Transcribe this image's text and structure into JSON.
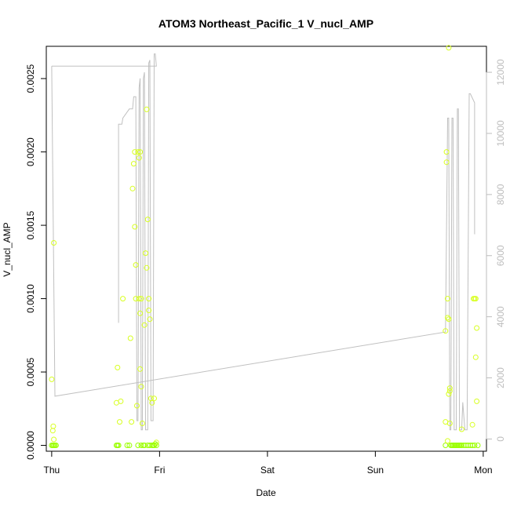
{
  "chart_data": {
    "type": "scatter",
    "title": "ATOM3 Northeast_Pacific_1 V_nucl_AMP",
    "xlabel": "Date",
    "ylabel": "V_nucl_AMP",
    "x_ticks": [
      "Thu",
      "Fri",
      "Sat",
      "Sun",
      "Mon"
    ],
    "x_range_days": [
      -0.05,
      4.03
    ],
    "y_left_ticks": [
      "0.0000",
      "0.0005",
      "0.0010",
      "0.0015",
      "0.0020",
      "0.0025"
    ],
    "y_left_range": [
      -4e-05,
      0.00272
    ],
    "y_right_ticks": [
      "0",
      "2000",
      "4000",
      "6000",
      "8000",
      "10000",
      "12000"
    ],
    "y_right_range": [
      -400,
      12850
    ],
    "grid": false,
    "colors": {
      "points_high": "#d8ff22",
      "points_low": "#9bff00",
      "line": "#c0c0c0",
      "axis": "#000000",
      "right_axis": "#bdbdbd"
    },
    "series": [
      {
        "kind": "scatter",
        "points": [
          [
            0.0,
            0.0
          ],
          [
            0.01,
            0.0
          ],
          [
            0.02,
            0.0
          ],
          [
            0.03,
            0.0
          ],
          [
            0.04,
            0.0
          ],
          [
            0.02,
            4e-05
          ],
          [
            0.01,
            0.0001
          ],
          [
            0.015,
            0.00013
          ],
          [
            0.0,
            0.00045
          ],
          [
            0.02,
            0.00138
          ],
          [
            0.6,
            0.0
          ],
          [
            0.61,
            0.0
          ],
          [
            0.62,
            0.0
          ],
          [
            0.6,
            0.00029
          ],
          [
            0.61,
            0.00053
          ],
          [
            0.63,
            0.00016
          ],
          [
            0.64,
            0.0003
          ],
          [
            0.66,
            0.001
          ],
          [
            0.7,
            0.0
          ],
          [
            0.72,
            0.0
          ],
          [
            0.73,
            0.00073
          ],
          [
            0.74,
            0.00016
          ],
          [
            0.75,
            0.00175
          ],
          [
            0.76,
            0.00192
          ],
          [
            0.77,
            0.002
          ],
          [
            0.77,
            0.00149
          ],
          [
            0.78,
            0.00123
          ],
          [
            0.78,
            0.001
          ],
          [
            0.79,
            0.00027
          ],
          [
            0.8,
            0.0
          ],
          [
            0.8,
            0.002
          ],
          [
            0.81,
            0.00196
          ],
          [
            0.81,
            0.001
          ],
          [
            0.82,
            0.002
          ],
          [
            0.82,
            0.0009
          ],
          [
            0.82,
            0.00052
          ],
          [
            0.83,
            0.0004
          ],
          [
            0.83,
            0.001
          ],
          [
            0.84,
            0.00015
          ],
          [
            0.85,
            0.0
          ],
          [
            0.86,
            0.00082
          ],
          [
            0.87,
            0.00131
          ],
          [
            0.88,
            0.00121
          ],
          [
            0.88,
            0.00229
          ],
          [
            0.89,
            0.00154
          ],
          [
            0.9,
            0.001
          ],
          [
            0.9,
            0.00092
          ],
          [
            0.91,
            0.00086
          ],
          [
            0.92,
            0.00032
          ],
          [
            0.93,
            0.00029
          ],
          [
            0.94,
            0.0
          ],
          [
            0.95,
            0.00032
          ],
          [
            0.96,
            1e-05
          ],
          [
            0.97,
            2e-05
          ],
          [
            0.83,
            0.0
          ],
          [
            0.86,
            0.0
          ],
          [
            0.89,
            0.0
          ],
          [
            0.91,
            0.0
          ],
          [
            0.93,
            0.0
          ],
          [
            0.95,
            0.0
          ],
          [
            0.97,
            0.0
          ],
          [
            3.65,
            0.0
          ],
          [
            3.65,
            0.00016
          ],
          [
            3.65,
            0.00078
          ],
          [
            3.66,
            0.00193
          ],
          [
            3.66,
            0.002
          ],
          [
            3.67,
            0.00087
          ],
          [
            3.67,
            0.001
          ],
          [
            3.68,
            0.00086
          ],
          [
            3.68,
            0.00271
          ],
          [
            3.68,
            0.00035
          ],
          [
            3.69,
            0.00039
          ],
          [
            3.69,
            0.00037
          ],
          [
            3.69,
            0.00015
          ],
          [
            3.67,
            3e-05
          ],
          [
            3.7,
            0.0
          ],
          [
            3.71,
            0.0
          ],
          [
            3.72,
            0.0
          ],
          [
            3.73,
            0.0
          ],
          [
            3.74,
            0.0
          ],
          [
            3.75,
            0.0
          ],
          [
            3.76,
            0.0
          ],
          [
            3.77,
            0.0
          ],
          [
            3.78,
            0.0
          ],
          [
            3.79,
            0.0
          ],
          [
            3.8,
            0.0
          ],
          [
            3.8,
            0.00011
          ],
          [
            3.82,
            0.0
          ],
          [
            3.84,
            0.0
          ],
          [
            3.86,
            0.0
          ],
          [
            3.88,
            0.0
          ],
          [
            3.9,
            0.0
          ],
          [
            3.9,
            0.00014
          ],
          [
            3.91,
            0.001
          ],
          [
            3.92,
            0.001
          ],
          [
            3.93,
            0.001
          ],
          [
            3.93,
            0.0006
          ],
          [
            3.94,
            0.0008
          ],
          [
            3.94,
            0.0003
          ],
          [
            3.95,
            0.0
          ],
          [
            3.92,
            0.0
          ]
        ]
      },
      {
        "kind": "line",
        "axis": "right",
        "points": [
          [
            0.0,
            12200
          ],
          [
            0.03,
            1400
          ],
          [
            3.65,
            3500
          ],
          [
            3.67,
            10500
          ],
          [
            3.68,
            10500
          ],
          [
            3.69,
            300
          ],
          [
            3.7,
            300
          ],
          [
            3.71,
            10500
          ],
          [
            3.72,
            10500
          ],
          [
            3.73,
            300
          ],
          [
            3.75,
            300
          ],
          [
            3.76,
            10800
          ],
          [
            3.77,
            10800
          ],
          [
            3.78,
            300
          ],
          [
            3.79,
            300
          ],
          [
            3.8,
            300
          ],
          [
            3.81,
            1200
          ],
          [
            3.83,
            300
          ],
          [
            3.85,
            300
          ],
          [
            3.87,
            11300
          ],
          [
            3.88,
            11300
          ],
          [
            3.92,
            11000
          ],
          [
            3.92,
            6700
          ]
        ]
      },
      {
        "kind": "line",
        "axis": "right",
        "points": [
          [
            0.0,
            12200
          ],
          [
            0.97,
            12200
          ],
          [
            0.96,
            12600
          ],
          [
            0.95,
            12600
          ],
          [
            0.94,
            600
          ],
          [
            0.92,
            600
          ],
          [
            0.91,
            12400
          ],
          [
            0.9,
            12300
          ],
          [
            0.89,
            300
          ],
          [
            0.87,
            300
          ],
          [
            0.86,
            12000
          ],
          [
            0.85,
            11800
          ],
          [
            0.84,
            300
          ],
          [
            0.83,
            300
          ],
          [
            0.82,
            11800
          ],
          [
            0.81,
            11500
          ],
          [
            0.8,
            600
          ],
          [
            0.79,
            600
          ],
          [
            0.78,
            11200
          ],
          [
            0.76,
            11200
          ],
          [
            0.75,
            10800
          ],
          [
            0.72,
            10800
          ],
          [
            0.7,
            10700
          ],
          [
            0.66,
            10500
          ],
          [
            0.65,
            10300
          ],
          [
            0.62,
            10300
          ],
          [
            0.62,
            3800
          ]
        ]
      }
    ]
  }
}
